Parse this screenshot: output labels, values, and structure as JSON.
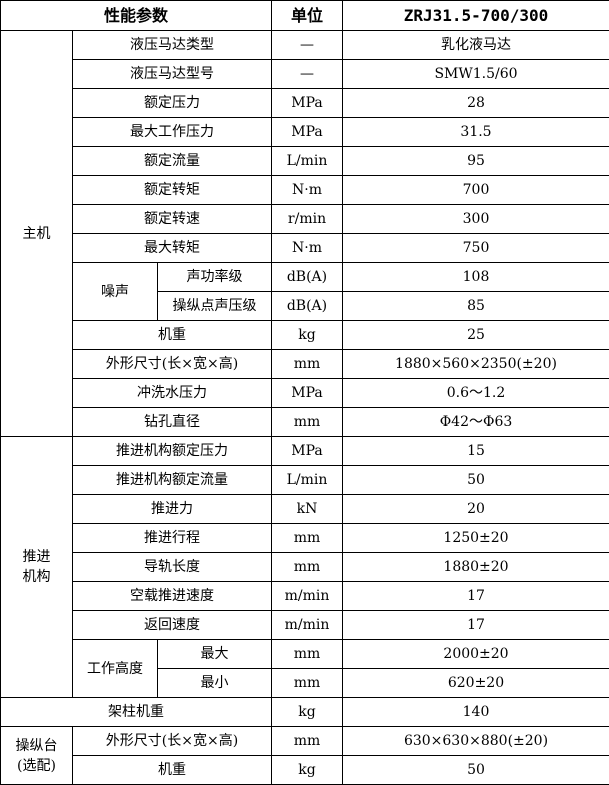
{
  "header": {
    "param": "性能参数",
    "unit": "单位",
    "model": "ZRJ31.5-700/300"
  },
  "groups": {
    "main": "主机",
    "noise": "噪声",
    "push": "推进机构",
    "push_l1": "推进",
    "push_l2": "机构",
    "height": "工作高度",
    "console_l1": "操纵台",
    "console_l2": "(选配)"
  },
  "main_rows": [
    {
      "name": "液压马达类型",
      "unit": "—",
      "value": "乳化液马达"
    },
    {
      "name": "液压马达型号",
      "unit": "—",
      "value": "SMW1.5/60"
    },
    {
      "name": "额定压力",
      "unit": "MPa",
      "value": "28"
    },
    {
      "name": "最大工作压力",
      "unit": "MPa",
      "value": "31.5"
    },
    {
      "name": "额定流量",
      "unit": "L/min",
      "value": "95"
    },
    {
      "name": "额定转矩",
      "unit": "N·m",
      "value": "700"
    },
    {
      "name": "额定转速",
      "unit": "r/min",
      "value": "300"
    },
    {
      "name": "最大转矩",
      "unit": "N·m",
      "value": "750"
    },
    {
      "name": "声功率级",
      "unit": "dB(A)",
      "value": "108"
    },
    {
      "name": "操纵点声压级",
      "unit": "dB(A)",
      "value": "85"
    },
    {
      "name": "机重",
      "unit": "kg",
      "value": "25"
    },
    {
      "name": "外形尺寸(长×宽×高)",
      "unit": "mm",
      "value": "1880×560×2350(±20)"
    },
    {
      "name": "冲洗水压力",
      "unit": "MPa",
      "value": "0.6～1.2"
    },
    {
      "name": "钻孔直径",
      "unit": "mm",
      "value": "Φ42～Φ63"
    }
  ],
  "push_rows": [
    {
      "name": "推进机构额定压力",
      "unit": "MPa",
      "value": "15"
    },
    {
      "name": "推进机构额定流量",
      "unit": "L/min",
      "value": "50"
    },
    {
      "name": "推进力",
      "unit": "kN",
      "value": "20"
    },
    {
      "name": "推进行程",
      "unit": "mm",
      "value": "1250±20"
    },
    {
      "name": "导轨长度",
      "unit": "mm",
      "value": "1880±20"
    },
    {
      "name": "空载推进速度",
      "unit": "m/min",
      "value": "17"
    },
    {
      "name": "返回速度",
      "unit": "m/min",
      "value": "17"
    },
    {
      "name": "最大",
      "unit": "mm",
      "value": "2000±20"
    },
    {
      "name": "最小",
      "unit": "mm",
      "value": "620±20"
    }
  ],
  "column_row": {
    "name": "架柱机重",
    "unit": "kg",
    "value": "140"
  },
  "console_rows": [
    {
      "name": "外形尺寸(长×宽×高)",
      "unit": "mm",
      "value": "630×630×880(±20)"
    },
    {
      "name": "机重",
      "unit": "kg",
      "value": "50"
    }
  ]
}
